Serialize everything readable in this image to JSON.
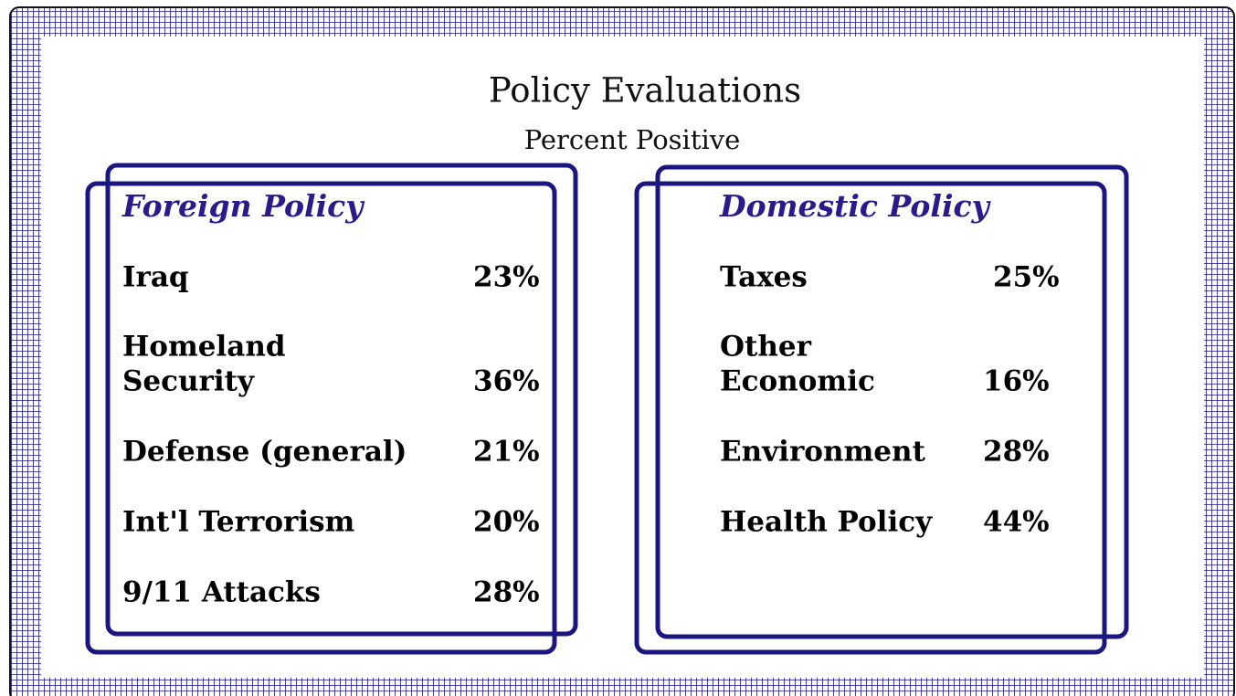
{
  "title": "Policy Evaluations",
  "subtitle": "Percent Positive",
  "panels": [
    {
      "heading": "Foreign Policy",
      "items": [
        {
          "lines": [
            "Iraq"
          ],
          "value": "23%"
        },
        {
          "lines": [
            "Homeland",
            "Security"
          ],
          "value": "36%"
        },
        {
          "lines": [
            "Defense (general)"
          ],
          "value": "21%"
        },
        {
          "lines": [
            "Int'l Terrorism"
          ],
          "value": "20%"
        },
        {
          "lines": [
            "9/11 Attacks"
          ],
          "value": "28%"
        }
      ]
    },
    {
      "heading": "Domestic Policy",
      "items": [
        {
          "lines": [
            "Taxes"
          ],
          "value": "25%"
        },
        {
          "lines": [
            "Other",
            "Economic"
          ],
          "value": "16%"
        },
        {
          "lines": [
            "Environment"
          ],
          "value": "28%"
        },
        {
          "lines": [
            "Health Policy"
          ],
          "value": "44%"
        }
      ]
    }
  ]
}
